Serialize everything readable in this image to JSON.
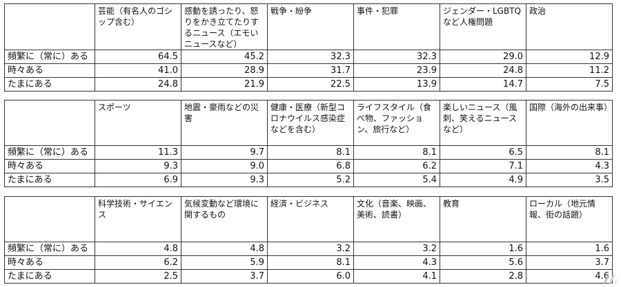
{
  "row_labels": [
    "頻繁に（常に）ある",
    "時々ある",
    "たまにある"
  ],
  "tables": [
    {
      "headers": [
        "芸能（有名人のゴシップ含む）",
        "感動を誘ったり、怒りをかき立てたりするニュース（エモいニュースなど）",
        "戦争・紛争",
        "事件・犯罪",
        "ジェンダー・LGBTQなど人権問題",
        "政治"
      ],
      "rows": [
        [
          "64.5",
          "45.2",
          "32.3",
          "32.3",
          "29.0",
          "12.9"
        ],
        [
          "41.0",
          "28.9",
          "31.7",
          "23.9",
          "24.8",
          "11.2"
        ],
        [
          "24.8",
          "21.9",
          "22.5",
          "13.9",
          "14.7",
          "7.5"
        ]
      ]
    },
    {
      "headers": [
        "スポーツ",
        "地震・豪雨などの災害",
        "健康・医療（新型コロナウイルス感染症などを含む）",
        "ライフスタイル（食べ物、ファッション、旅行など）",
        "楽しいニュース（風刺、笑えるニュースなど）",
        "国際（海外の出来事）"
      ],
      "rows": [
        [
          "11.3",
          "9.7",
          "8.1",
          "8.1",
          "6.5",
          "8.1"
        ],
        [
          "9.3",
          "9.0",
          "6.8",
          "6.2",
          "7.1",
          "4.3"
        ],
        [
          "6.9",
          "9.3",
          "5.2",
          "5.4",
          "4.9",
          "3.5"
        ]
      ]
    },
    {
      "headers": [
        "科学技術・サイエンス",
        "気候変動など環境に関するもの",
        "経済・ビジネス",
        "文化（音楽、映画、美術、読書）",
        "教育",
        "ローカル（地元情報、街の話題）"
      ],
      "rows": [
        [
          "4.8",
          "4.8",
          "3.2",
          "3.2",
          "1.6",
          "1.6"
        ],
        [
          "6.2",
          "5.9",
          "8.1",
          "4.3",
          "5.6",
          "3.7"
        ],
        [
          "2.5",
          "3.7",
          "6.0",
          "4.1",
          "2.8",
          "4.6"
        ]
      ]
    }
  ]
}
